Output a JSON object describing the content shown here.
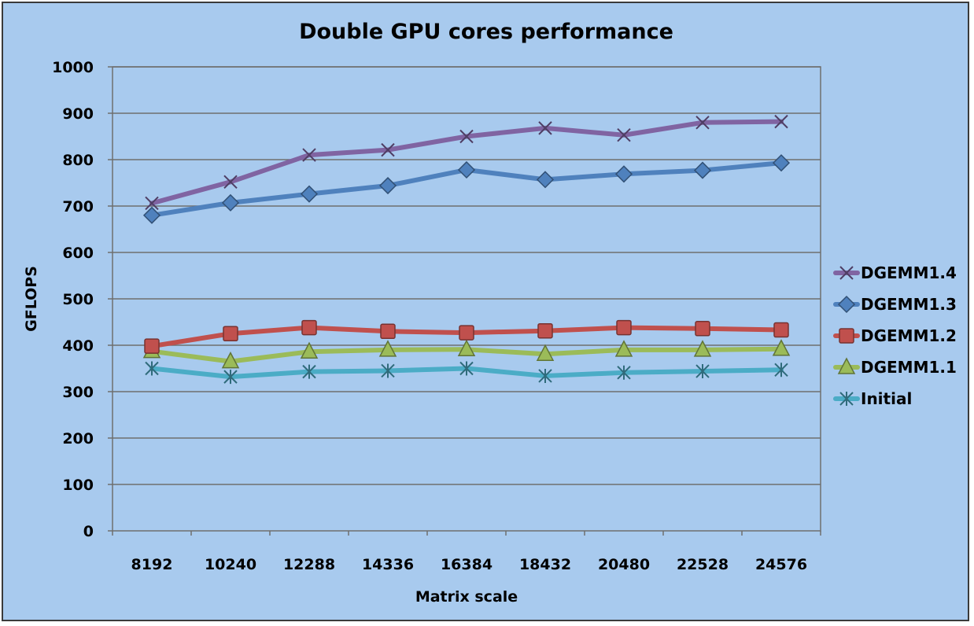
{
  "chart_data": {
    "type": "line",
    "title": "Double GPU cores performance",
    "xlabel": "Matrix scale",
    "ylabel": "GFLOPS",
    "categories": [
      "8192",
      "10240",
      "12288",
      "14336",
      "16384",
      "18432",
      "20480",
      "22528",
      "24576"
    ],
    "ylim": [
      0,
      1000
    ],
    "yticks": [
      0,
      100,
      200,
      300,
      400,
      500,
      600,
      700,
      800,
      900,
      1000
    ],
    "grid": "horizontal",
    "legend_position": "right",
    "series": [
      {
        "name": "DGEMM1.4",
        "color": "#8064a2",
        "marker": "x",
        "values": [
          706,
          752,
          810,
          821,
          850,
          868,
          853,
          880,
          882
        ]
      },
      {
        "name": "DGEMM1.3",
        "color": "#4f81bd",
        "marker": "diamond",
        "values": [
          680,
          707,
          726,
          744,
          778,
          757,
          769,
          777,
          793
        ]
      },
      {
        "name": "DGEMM1.2",
        "color": "#c0504d",
        "marker": "square",
        "values": [
          398,
          425,
          438,
          430,
          427,
          431,
          438,
          436,
          433
        ]
      },
      {
        "name": "DGEMM1.1",
        "color": "#9bbb59",
        "marker": "triangle",
        "values": [
          387,
          365,
          386,
          390,
          391,
          381,
          390,
          390,
          392
        ]
      },
      {
        "name": "Initial",
        "color": "#4bacc6",
        "marker": "star",
        "values": [
          350,
          332,
          343,
          345,
          350,
          334,
          341,
          344,
          347
        ]
      }
    ]
  }
}
